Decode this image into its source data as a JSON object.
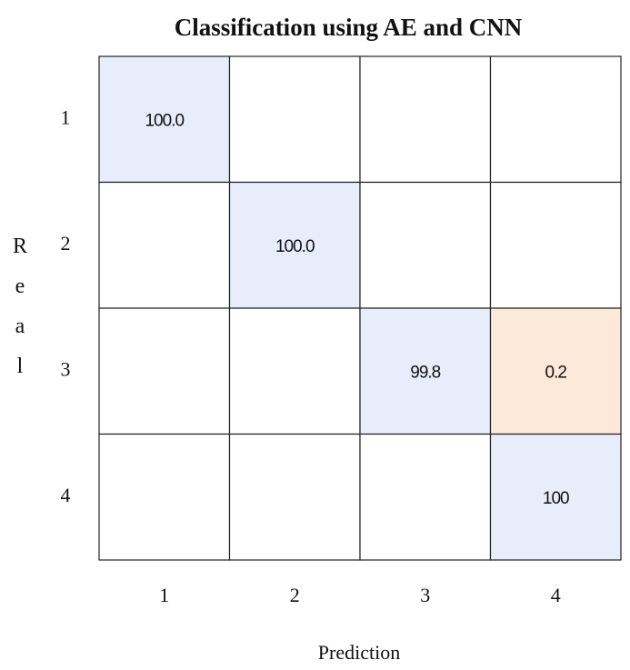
{
  "chart_data": {
    "type": "heatmap",
    "title": "Classification using AE and CNN",
    "x_label": "Prediction",
    "y_label": "Real",
    "x_categories": [
      "1",
      "2",
      "3",
      "4"
    ],
    "y_categories": [
      "1",
      "2",
      "3",
      "4"
    ],
    "values": [
      [
        100,
        null,
        null,
        null
      ],
      [
        null,
        100,
        null,
        null
      ],
      [
        null,
        null,
        99.8,
        0.2
      ],
      [
        null,
        null,
        null,
        100
      ]
    ],
    "value_labels": [
      [
        "100.0",
        null,
        null,
        null
      ],
      [
        null,
        "100.0",
        null,
        null
      ],
      [
        null,
        null,
        "99.8",
        "0.2"
      ],
      [
        null,
        null,
        null,
        "100"
      ]
    ],
    "diagonal_color": "#e8edfb",
    "off_diagonal_color": "#fde9d9"
  }
}
